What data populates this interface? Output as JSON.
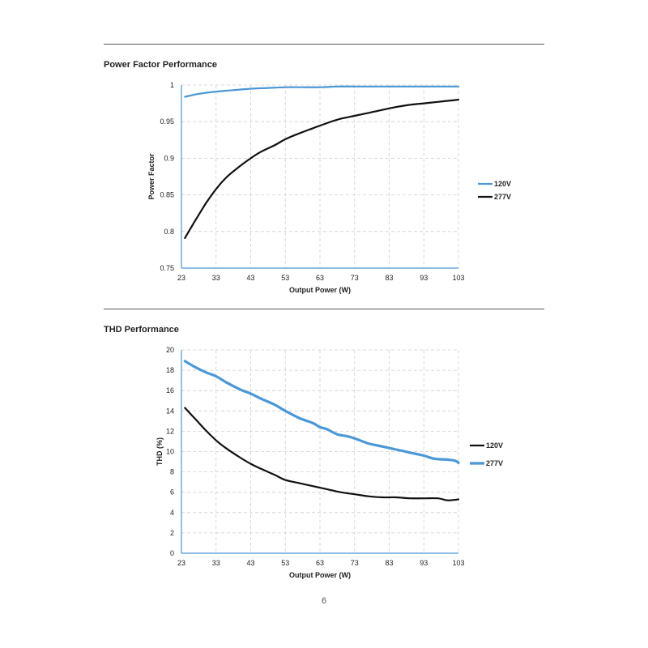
{
  "page": {
    "number": "6"
  },
  "colors": {
    "blue": "#4a98d6",
    "black": "#111111",
    "grid": "#cfcfcf",
    "rule": "#555555"
  },
  "sections": [
    {
      "title": "Power Factor Performance"
    },
    {
      "title": "THD Performance"
    }
  ],
  "chart_data": [
    {
      "type": "line",
      "xlabel": "Output Power (W)",
      "ylabel": "Power Factor",
      "xlim": [
        23,
        103
      ],
      "ylim": [
        0.75,
        1
      ],
      "x_ticks": [
        23,
        33,
        43,
        53,
        63,
        73,
        83,
        93,
        103
      ],
      "y_ticks": [
        {
          "value": 0.75,
          "label": "0.75"
        },
        {
          "value": 0.8,
          "label": "0.8"
        },
        {
          "value": 0.85,
          "label": "0.85"
        },
        {
          "value": 0.9,
          "label": "0.9"
        },
        {
          "value": 0.95,
          "label": "0.95"
        },
        {
          "value": 1,
          "label": "1"
        }
      ],
      "grid": true,
      "legend": "right",
      "series": [
        {
          "name": "120V",
          "color": "#4a98d6",
          "width": 2.2,
          "x": [
            24,
            28,
            33,
            38,
            43,
            48,
            53,
            58,
            63,
            68,
            73,
            78,
            83,
            88,
            93,
            98,
            103
          ],
          "y": [
            0.984,
            0.988,
            0.991,
            0.993,
            0.995,
            0.996,
            0.997,
            0.997,
            0.997,
            0.998,
            0.998,
            0.998,
            0.998,
            0.998,
            0.998,
            0.998,
            0.998
          ]
        },
        {
          "name": "277V",
          "color": "#111111",
          "width": 2.2,
          "x": [
            24,
            27,
            30,
            33,
            36,
            39,
            43,
            46,
            50,
            53,
            57,
            61,
            65,
            69,
            73,
            77,
            81,
            85,
            89,
            93,
            97,
            101,
            103
          ],
          "y": [
            0.791,
            0.815,
            0.838,
            0.858,
            0.874,
            0.886,
            0.9,
            0.909,
            0.918,
            0.926,
            0.934,
            0.941,
            0.948,
            0.954,
            0.958,
            0.962,
            0.966,
            0.97,
            0.973,
            0.975,
            0.977,
            0.979,
            0.98
          ]
        }
      ]
    },
    {
      "type": "line",
      "xlabel": "Output Power (W)",
      "ylabel": "THD (%)",
      "xlim": [
        23,
        103
      ],
      "ylim": [
        0,
        20
      ],
      "x_ticks": [
        23,
        33,
        43,
        53,
        63,
        73,
        83,
        93,
        103
      ],
      "y_ticks": [
        {
          "value": 0,
          "label": "0"
        },
        {
          "value": 2,
          "label": "2"
        },
        {
          "value": 4,
          "label": "4"
        },
        {
          "value": 6,
          "label": "6"
        },
        {
          "value": 8,
          "label": "8"
        },
        {
          "value": 10,
          "label": "10"
        },
        {
          "value": 12,
          "label": "12"
        },
        {
          "value": 14,
          "label": "14"
        },
        {
          "value": 16,
          "label": "16"
        },
        {
          "value": 18,
          "label": "18"
        },
        {
          "value": 20,
          "label": "20"
        }
      ],
      "grid": true,
      "legend": "right",
      "series": [
        {
          "name": "120V",
          "color": "#111111",
          "width": 2.2,
          "x": [
            24,
            27,
            30,
            33,
            36,
            40,
            43,
            46,
            50,
            53,
            57,
            61,
            65,
            69,
            73,
            77,
            81,
            85,
            89,
            93,
            97,
            100,
            103
          ],
          "y": [
            14.3,
            13.2,
            12.1,
            11.1,
            10.3,
            9.4,
            8.8,
            8.3,
            7.7,
            7.2,
            6.9,
            6.6,
            6.3,
            6.0,
            5.8,
            5.6,
            5.5,
            5.5,
            5.4,
            5.4,
            5.4,
            5.2,
            5.3
          ]
        },
        {
          "name": "277V",
          "color": "#4a98d6",
          "width": 3.2,
          "x": [
            24,
            27,
            30,
            33,
            36,
            40,
            43,
            46,
            50,
            53,
            57,
            61,
            63,
            65,
            68,
            71,
            73,
            77,
            81,
            85,
            89,
            93,
            96,
            100,
            102,
            103
          ],
          "y": [
            18.9,
            18.3,
            17.8,
            17.4,
            16.8,
            16.1,
            15.7,
            15.2,
            14.6,
            14.0,
            13.3,
            12.8,
            12.4,
            12.2,
            11.7,
            11.5,
            11.3,
            10.8,
            10.5,
            10.2,
            9.9,
            9.6,
            9.3,
            9.2,
            9.1,
            8.9
          ]
        }
      ]
    }
  ]
}
